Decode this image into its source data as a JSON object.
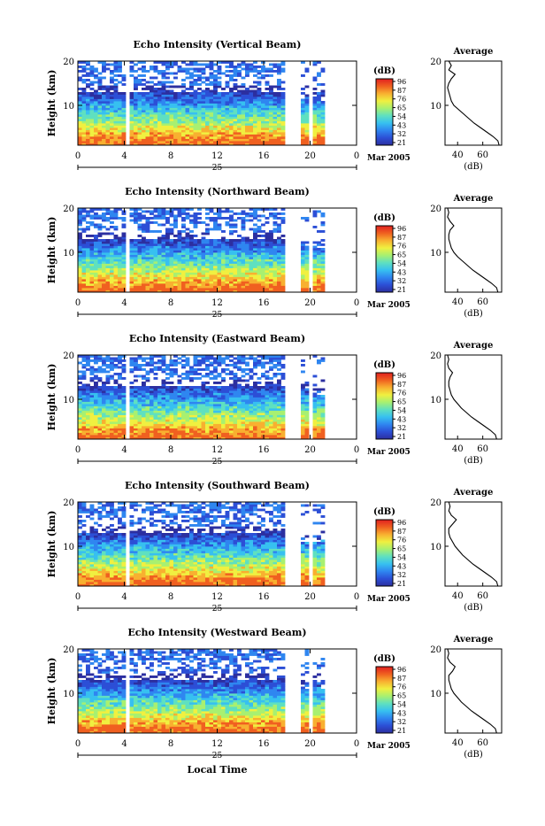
{
  "figure": {
    "x_axis_title": "Local Time",
    "date_label": "25",
    "month_label": "Mar 2005",
    "y_axis_title": "Height (km)",
    "colorbar_unit": "(dB)",
    "avg_title": "Average",
    "avg_unit": "(dB)",
    "colors": {
      "stops": [
        "#2c2fa0",
        "#2c4fd6",
        "#2f86f0",
        "#37c0f0",
        "#5fe0c0",
        "#a8f070",
        "#f0f040",
        "#f8b030",
        "#f06020",
        "#e02020"
      ]
    }
  },
  "chart_data": [
    {
      "type": "heatmap",
      "title": "Echo Intensity (Vertical Beam)",
      "ylabel": "Height (km)",
      "xticks": [
        "0",
        "4",
        "8",
        "12",
        "16",
        "20",
        "0"
      ],
      "yticks": [
        "20",
        "10"
      ],
      "xlim": [
        0,
        24
      ],
      "ylim": [
        1,
        20
      ],
      "colorbar_ticks": [
        "96",
        "87",
        "76",
        "65",
        "54",
        "43",
        "32",
        "21"
      ],
      "avg_xticks": [
        "40",
        "60"
      ],
      "avg_xlim": [
        30,
        75
      ],
      "avg_profile": [
        [
          1,
          73
        ],
        [
          2,
          72
        ],
        [
          3,
          68
        ],
        [
          4,
          63
        ],
        [
          5,
          58
        ],
        [
          6,
          53
        ],
        [
          7,
          49
        ],
        [
          8,
          45
        ],
        [
          9,
          41
        ],
        [
          10,
          37
        ],
        [
          11,
          35
        ],
        [
          12,
          34
        ],
        [
          13,
          33
        ],
        [
          14,
          32
        ],
        [
          15,
          33
        ],
        [
          16,
          35
        ],
        [
          17,
          38
        ],
        [
          18,
          33
        ],
        [
          19,
          35
        ],
        [
          20,
          33
        ]
      ]
    },
    {
      "type": "heatmap",
      "title": "Echo Intensity (Northward Beam)",
      "ylabel": "Height (km)",
      "xticks": [
        "0",
        "4",
        "8",
        "12",
        "16",
        "20",
        "0"
      ],
      "yticks": [
        "20",
        "10"
      ],
      "xlim": [
        0,
        24
      ],
      "ylim": [
        1,
        20
      ],
      "colorbar_ticks": [
        "96",
        "87",
        "76",
        "65",
        "54",
        "43",
        "32",
        "21"
      ],
      "avg_xticks": [
        "40",
        "60"
      ],
      "avg_xlim": [
        30,
        75
      ],
      "avg_profile": [
        [
          1,
          72
        ],
        [
          2,
          71
        ],
        [
          3,
          67
        ],
        [
          4,
          62
        ],
        [
          5,
          57
        ],
        [
          6,
          52
        ],
        [
          7,
          48
        ],
        [
          8,
          44
        ],
        [
          9,
          40
        ],
        [
          10,
          37
        ],
        [
          11,
          35
        ],
        [
          12,
          34
        ],
        [
          13,
          33
        ],
        [
          14,
          33
        ],
        [
          15,
          34
        ],
        [
          16,
          37
        ],
        [
          17,
          34
        ],
        [
          18,
          32
        ],
        [
          19,
          33
        ],
        [
          20,
          32
        ]
      ]
    },
    {
      "type": "heatmap",
      "title": "Echo Intensity (Eastward Beam)",
      "ylabel": "Height (km)",
      "xticks": [
        "0",
        "4",
        "8",
        "12",
        "16",
        "20",
        "0"
      ],
      "yticks": [
        "20",
        "10"
      ],
      "xlim": [
        0,
        24
      ],
      "ylim": [
        1,
        20
      ],
      "colorbar_ticks": [
        "96",
        "87",
        "76",
        "65",
        "54",
        "43",
        "32",
        "21"
      ],
      "avg_xticks": [
        "40",
        "60"
      ],
      "avg_xlim": [
        30,
        75
      ],
      "avg_profile": [
        [
          1,
          71
        ],
        [
          2,
          70
        ],
        [
          3,
          66
        ],
        [
          4,
          61
        ],
        [
          5,
          56
        ],
        [
          6,
          51
        ],
        [
          7,
          47
        ],
        [
          8,
          43
        ],
        [
          9,
          40
        ],
        [
          10,
          37
        ],
        [
          11,
          35
        ],
        [
          12,
          34
        ],
        [
          13,
          33
        ],
        [
          14,
          33
        ],
        [
          15,
          34
        ],
        [
          16,
          36
        ],
        [
          17,
          33
        ],
        [
          18,
          32
        ],
        [
          19,
          33
        ],
        [
          20,
          32
        ]
      ]
    },
    {
      "type": "heatmap",
      "title": "Echo Intensity (Southward Beam)",
      "ylabel": "Height (km)",
      "xticks": [
        "0",
        "4",
        "8",
        "12",
        "16",
        "20",
        "0"
      ],
      "yticks": [
        "20",
        "10"
      ],
      "xlim": [
        0,
        24
      ],
      "ylim": [
        1,
        20
      ],
      "colorbar_ticks": [
        "96",
        "87",
        "76",
        "65",
        "54",
        "43",
        "32",
        "21"
      ],
      "avg_xticks": [
        "40",
        "60"
      ],
      "avg_xlim": [
        30,
        75
      ],
      "avg_profile": [
        [
          1,
          72
        ],
        [
          2,
          71
        ],
        [
          3,
          67
        ],
        [
          4,
          62
        ],
        [
          5,
          57
        ],
        [
          6,
          52
        ],
        [
          7,
          48
        ],
        [
          8,
          44
        ],
        [
          9,
          41
        ],
        [
          10,
          38
        ],
        [
          11,
          36
        ],
        [
          12,
          34
        ],
        [
          13,
          33
        ],
        [
          14,
          33
        ],
        [
          15,
          36
        ],
        [
          16,
          39
        ],
        [
          17,
          35
        ],
        [
          18,
          33
        ],
        [
          19,
          34
        ],
        [
          20,
          33
        ]
      ]
    },
    {
      "type": "heatmap",
      "title": "Echo Intensity (Westward Beam)",
      "ylabel": "Height (km)",
      "xticks": [
        "0",
        "4",
        "8",
        "12",
        "16",
        "20",
        "0"
      ],
      "yticks": [
        "20",
        "10"
      ],
      "xlim": [
        0,
        24
      ],
      "ylim": [
        1,
        20
      ],
      "colorbar_ticks": [
        "96",
        "87",
        "76",
        "65",
        "54",
        "43",
        "32",
        "21"
      ],
      "avg_xticks": [
        "40",
        "60"
      ],
      "avg_xlim": [
        30,
        75
      ],
      "avg_profile": [
        [
          1,
          71
        ],
        [
          2,
          70
        ],
        [
          3,
          66
        ],
        [
          4,
          61
        ],
        [
          5,
          56
        ],
        [
          6,
          51
        ],
        [
          7,
          47
        ],
        [
          8,
          43
        ],
        [
          9,
          40
        ],
        [
          10,
          37
        ],
        [
          11,
          35
        ],
        [
          12,
          34
        ],
        [
          13,
          33
        ],
        [
          14,
          33
        ],
        [
          15,
          36
        ],
        [
          16,
          38
        ],
        [
          17,
          34
        ],
        [
          18,
          32
        ],
        [
          19,
          33
        ],
        [
          20,
          32
        ]
      ]
    }
  ]
}
